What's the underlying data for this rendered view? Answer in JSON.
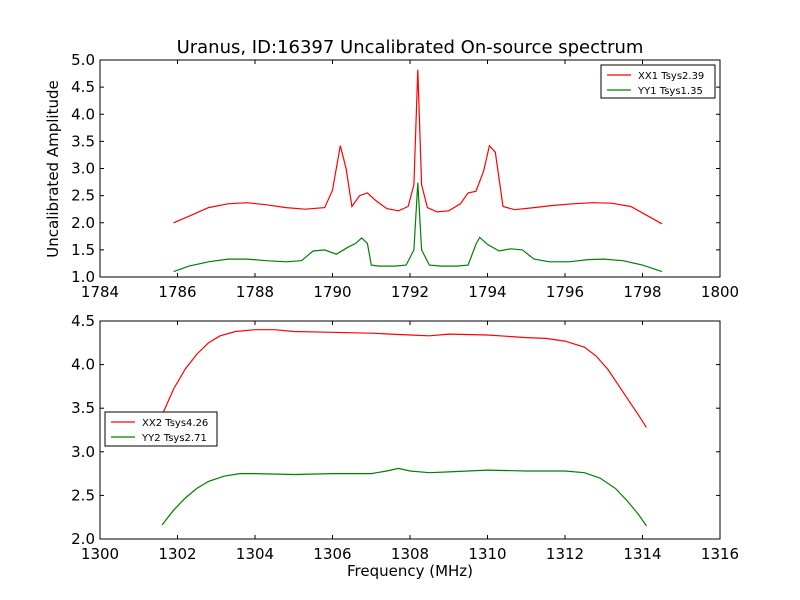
{
  "figure": {
    "title": "Uranus, ID:16397 Uncalibrated On-source spectrum",
    "xlabel": "Frequency (MHz)",
    "ylabel": "Uncalibrated Amplitude"
  },
  "chart_data": [
    {
      "type": "line",
      "title": "Uranus, ID:16397 Uncalibrated On-source spectrum",
      "ylabel": "Uncalibrated Amplitude",
      "xlim": [
        1784,
        1800
      ],
      "ylim": [
        1.0,
        5.0
      ],
      "xticks": [
        "1784",
        "1786",
        "1788",
        "1790",
        "1792",
        "1794",
        "1796",
        "1798",
        "1800"
      ],
      "yticks": [
        "1.0",
        "1.5",
        "2.0",
        "2.5",
        "3.0",
        "3.5",
        "4.0",
        "4.5",
        "5.0"
      ],
      "legend_position": "top-right",
      "series": [
        {
          "name": "XX1 Tsys2.39",
          "color": "#ff0000",
          "x": [
            1785.9,
            1786.3,
            1786.8,
            1787.3,
            1787.8,
            1788.3,
            1788.8,
            1789.3,
            1789.8,
            1790.0,
            1790.2,
            1790.35,
            1790.5,
            1790.7,
            1790.9,
            1791.1,
            1791.4,
            1791.7,
            1791.95,
            1792.1,
            1792.2,
            1792.3,
            1792.45,
            1792.7,
            1793.0,
            1793.3,
            1793.5,
            1793.7,
            1793.9,
            1794.05,
            1794.2,
            1794.4,
            1794.7,
            1795.2,
            1795.7,
            1796.2,
            1796.7,
            1797.2,
            1797.7,
            1798.2,
            1798.5
          ],
          "y": [
            2.0,
            2.12,
            2.28,
            2.35,
            2.37,
            2.33,
            2.28,
            2.25,
            2.28,
            2.6,
            3.42,
            3.0,
            2.3,
            2.5,
            2.55,
            2.42,
            2.26,
            2.22,
            2.3,
            2.7,
            4.82,
            2.7,
            2.28,
            2.2,
            2.22,
            2.35,
            2.55,
            2.58,
            2.95,
            3.42,
            3.3,
            2.3,
            2.24,
            2.28,
            2.32,
            2.35,
            2.37,
            2.36,
            2.3,
            2.1,
            1.98
          ]
        },
        {
          "name": "YY1 Tsys1.35",
          "color": "#008000",
          "x": [
            1785.9,
            1786.3,
            1786.8,
            1787.3,
            1787.8,
            1788.3,
            1788.8,
            1789.2,
            1789.5,
            1789.8,
            1790.1,
            1790.4,
            1790.6,
            1790.75,
            1790.9,
            1791.0,
            1791.2,
            1791.6,
            1791.9,
            1792.1,
            1792.2,
            1792.3,
            1792.5,
            1792.8,
            1793.2,
            1793.5,
            1793.7,
            1793.8,
            1794.0,
            1794.3,
            1794.6,
            1794.9,
            1795.2,
            1795.6,
            1796.1,
            1796.6,
            1797.0,
            1797.5,
            1798.0,
            1798.5
          ],
          "y": [
            1.1,
            1.2,
            1.28,
            1.33,
            1.33,
            1.3,
            1.28,
            1.3,
            1.48,
            1.5,
            1.42,
            1.55,
            1.62,
            1.72,
            1.62,
            1.22,
            1.2,
            1.2,
            1.22,
            1.5,
            2.74,
            1.5,
            1.22,
            1.2,
            1.2,
            1.22,
            1.6,
            1.73,
            1.6,
            1.48,
            1.52,
            1.5,
            1.33,
            1.28,
            1.28,
            1.32,
            1.33,
            1.3,
            1.22,
            1.1
          ]
        }
      ]
    },
    {
      "type": "line",
      "xlabel": "Frequency (MHz)",
      "xlim": [
        1300,
        1316
      ],
      "ylim": [
        2.0,
        4.5
      ],
      "xticks": [
        "1300",
        "1302",
        "1304",
        "1306",
        "1308",
        "1310",
        "1312",
        "1314",
        "1316"
      ],
      "yticks": [
        "2.0",
        "2.5",
        "3.0",
        "3.5",
        "4.0",
        "4.5"
      ],
      "legend_position": "center-left",
      "series": [
        {
          "name": "XX2 Tsys4.26",
          "color": "#ff0000",
          "x": [
            1301.6,
            1301.9,
            1302.2,
            1302.5,
            1302.8,
            1303.1,
            1303.5,
            1304.0,
            1304.5,
            1305.0,
            1306.0,
            1307.0,
            1307.5,
            1308.0,
            1308.5,
            1309.0,
            1310.0,
            1311.0,
            1311.5,
            1312.0,
            1312.5,
            1312.8,
            1313.1,
            1313.4,
            1313.7,
            1313.9,
            1314.1
          ],
          "y": [
            3.42,
            3.72,
            3.95,
            4.12,
            4.25,
            4.33,
            4.38,
            4.4,
            4.4,
            4.38,
            4.37,
            4.36,
            4.35,
            4.34,
            4.33,
            4.35,
            4.34,
            4.31,
            4.3,
            4.27,
            4.2,
            4.1,
            3.95,
            3.75,
            3.55,
            3.42,
            3.28
          ]
        },
        {
          "name": "YY2 Tsys2.71",
          "color": "#008000",
          "x": [
            1301.6,
            1301.9,
            1302.2,
            1302.5,
            1302.8,
            1303.2,
            1303.6,
            1304.0,
            1305.0,
            1306.0,
            1307.0,
            1307.4,
            1307.7,
            1308.0,
            1308.5,
            1309.0,
            1310.0,
            1311.0,
            1312.0,
            1312.5,
            1312.9,
            1313.3,
            1313.6,
            1313.9,
            1314.1
          ],
          "y": [
            2.16,
            2.33,
            2.47,
            2.58,
            2.66,
            2.72,
            2.75,
            2.75,
            2.74,
            2.75,
            2.75,
            2.78,
            2.81,
            2.78,
            2.76,
            2.77,
            2.79,
            2.78,
            2.78,
            2.76,
            2.7,
            2.58,
            2.44,
            2.28,
            2.15
          ]
        }
      ]
    }
  ]
}
